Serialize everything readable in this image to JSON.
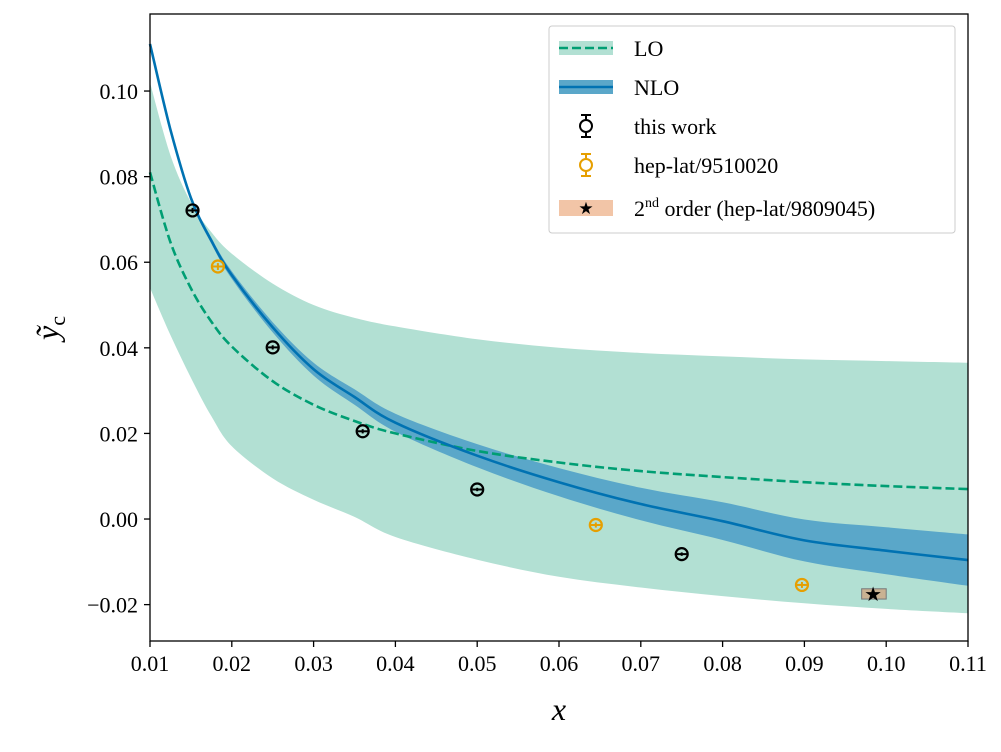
{
  "chart_data": {
    "type": "line",
    "xlabel": "x",
    "ylabel": "ỹ",
    "ylabel_sub": "c",
    "xlim": [
      0.01,
      0.11
    ],
    "ylim": [
      -0.0285,
      0.118
    ],
    "grid": false,
    "legend_placement": "top-right",
    "xticks": [
      {
        "v": 0.01,
        "label": "0.01"
      },
      {
        "v": 0.02,
        "label": "0.02"
      },
      {
        "v": 0.03,
        "label": "0.03"
      },
      {
        "v": 0.04,
        "label": "0.04"
      },
      {
        "v": 0.05,
        "label": "0.05"
      },
      {
        "v": 0.06,
        "label": "0.06"
      },
      {
        "v": 0.07,
        "label": "0.07"
      },
      {
        "v": 0.08,
        "label": "0.08"
      },
      {
        "v": 0.09,
        "label": "0.09"
      },
      {
        "v": 0.1,
        "label": "0.10"
      },
      {
        "v": 0.11,
        "label": "0.11"
      }
    ],
    "yticks": [
      {
        "v": -0.02,
        "label": "−0.02"
      },
      {
        "v": 0.0,
        "label": "0.00"
      },
      {
        "v": 0.02,
        "label": "0.02"
      },
      {
        "v": 0.04,
        "label": "0.04"
      },
      {
        "v": 0.06,
        "label": "0.06"
      },
      {
        "v": 0.08,
        "label": "0.08"
      },
      {
        "v": 0.1,
        "label": "0.10"
      }
    ],
    "x": [
      0.01,
      0.0125,
      0.015,
      0.0175,
      0.02,
      0.025,
      0.03,
      0.035,
      0.04,
      0.05,
      0.06,
      0.07,
      0.08,
      0.09,
      0.1,
      0.11
    ],
    "series": [
      {
        "name": "LO",
        "style": "dashed",
        "color": "#009E73",
        "band_color": "#b2e0d3",
        "values": [
          0.081,
          0.0647,
          0.0539,
          0.0461,
          0.0403,
          0.0322,
          0.0267,
          0.0229,
          0.02,
          0.0159,
          0.0132,
          0.0112,
          0.0098,
          0.0086,
          0.0077,
          0.007
        ],
        "upper": [
          0.102,
          0.085,
          0.074,
          0.067,
          0.062,
          0.055,
          0.05,
          0.047,
          0.045,
          0.042,
          0.04,
          0.0388,
          0.038,
          0.0373,
          0.0369,
          0.0365
        ],
        "lower": [
          0.054,
          0.043,
          0.033,
          0.024,
          0.017,
          0.0095,
          0.0045,
          0.0005,
          -0.0042,
          -0.0095,
          -0.0135,
          -0.016,
          -0.018,
          -0.0197,
          -0.021,
          -0.022
        ]
      },
      {
        "name": "NLO",
        "style": "solid",
        "color": "#0072B2",
        "band_color": "#5aa7c9",
        "values": [
          0.111,
          0.091,
          0.075,
          0.065,
          0.057,
          0.0448,
          0.035,
          0.0285,
          0.0225,
          0.0148,
          0.0086,
          0.0035,
          -0.0005,
          -0.005,
          -0.0074,
          -0.0096
        ],
        "halfwidth": [
          0.0003,
          0.0004,
          0.0006,
          0.0007,
          0.0009,
          0.0012,
          0.0015,
          0.0018,
          0.0021,
          0.0027,
          0.0033,
          0.0038,
          0.0044,
          0.0049,
          0.0055,
          0.006
        ]
      }
    ],
    "points": [
      {
        "name": "this work",
        "color": "#000000",
        "x": [
          0.0152,
          0.025,
          0.036,
          0.05,
          0.075
        ],
        "y": [
          0.0721,
          0.0401,
          0.0205,
          0.0069,
          -0.0082
        ],
        "yerr": [
          0.0006,
          0.0005,
          0.0005,
          0.0004,
          0.0004
        ]
      },
      {
        "name": "hep-lat/9510020",
        "color": "#E69F00",
        "x": [
          0.0183,
          0.0645,
          0.0897
        ],
        "y": [
          0.059,
          -0.0014,
          -0.0154
        ],
        "yerr": [
          0.0008,
          0.0006,
          0.0007
        ]
      }
    ],
    "second_order": {
      "name": "2nd order (hep-lat/9809045)",
      "x": 0.0984,
      "y": -0.0175,
      "xrange": [
        0.097,
        0.1
      ],
      "yrange": [
        -0.0187,
        -0.0163
      ],
      "box_color": "#c9b292",
      "legend_color": "#f2c5a7"
    },
    "legend": {
      "lo": "LO",
      "nlo": "NLO",
      "this_work": "this work",
      "hep1": "hep-lat/9510020",
      "second_pre": "2",
      "second_sup": "nd",
      "second_post": " order (hep-lat/9809045)"
    }
  }
}
